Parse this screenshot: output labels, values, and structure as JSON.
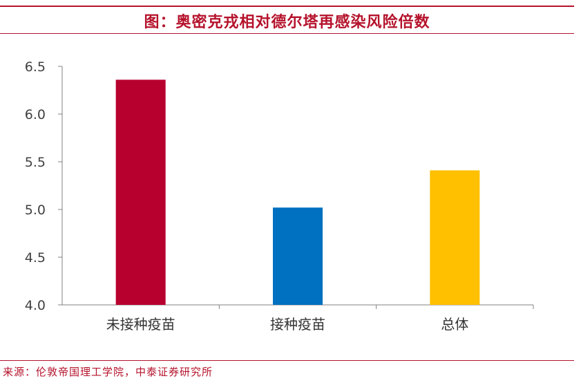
{
  "title": "图：奥密克戎相对德尔塔再感染风险倍数",
  "source": "来源：伦敦帝国理工学院，中泰证券研究所",
  "chart_data": {
    "type": "bar",
    "title": "图：奥密克戎相对德尔塔再感染风险倍数",
    "categories": [
      "未接种疫苗",
      "接种疫苗",
      "总体"
    ],
    "values": [
      6.36,
      5.02,
      5.41
    ],
    "colors": [
      "#b8002f",
      "#0070c0",
      "#ffc000"
    ],
    "ylim": [
      4.0,
      6.5
    ],
    "yticks": [
      "4.0",
      "4.5",
      "5.0",
      "5.5",
      "6.0",
      "6.5"
    ],
    "xlabel": "",
    "ylabel": "",
    "grid": false
  }
}
